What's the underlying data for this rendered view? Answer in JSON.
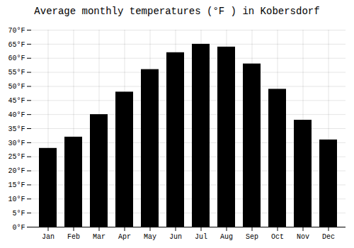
{
  "chart_data": {
    "type": "bar",
    "title": "Average monthly temperatures (°F ) in Kobersdorf",
    "categories": [
      "Jan",
      "Feb",
      "Mar",
      "Apr",
      "May",
      "Jun",
      "Jul",
      "Aug",
      "Sep",
      "Oct",
      "Nov",
      "Dec"
    ],
    "values": [
      28,
      32,
      40,
      48,
      56,
      62,
      65,
      64,
      58,
      49,
      38,
      31
    ],
    "ylim": [
      0,
      70
    ],
    "yticks": [
      {
        "value": 0,
        "label": "0°F"
      },
      {
        "value": 5,
        "label": "5°F"
      },
      {
        "value": 10,
        "label": "10°F"
      },
      {
        "value": 15,
        "label": "15°F"
      },
      {
        "value": 20,
        "label": "20°F"
      },
      {
        "value": 25,
        "label": "25°F"
      },
      {
        "value": 30,
        "label": "30°F"
      },
      {
        "value": 35,
        "label": "35°F"
      },
      {
        "value": 40,
        "label": "40°F"
      },
      {
        "value": 45,
        "label": "45°F"
      },
      {
        "value": 50,
        "label": "50°F"
      },
      {
        "value": 55,
        "label": "55°F"
      },
      {
        "value": 60,
        "label": "60°F"
      },
      {
        "value": 65,
        "label": "65°F"
      },
      {
        "value": 70,
        "label": "70°F"
      }
    ],
    "grid": true
  }
}
